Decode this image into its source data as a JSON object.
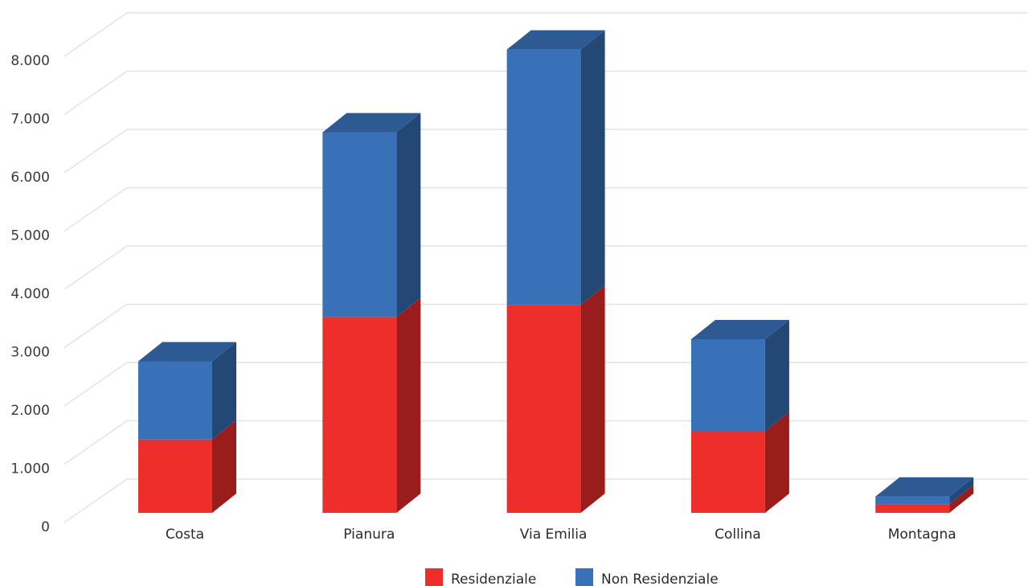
{
  "chart_data": {
    "type": "bar",
    "stacked": true,
    "three_d": true,
    "categories": [
      "Costa",
      "Pianura",
      "Via Emilia",
      "Collina",
      "Montagna"
    ],
    "series": [
      {
        "name": "Residenziale",
        "values": [
          1260,
          3360,
          3570,
          1400,
          150
        ],
        "color": "#ee2e2a"
      },
      {
        "name": "Non Residenziale",
        "values": [
          1340,
          3170,
          4380,
          1580,
          130
        ],
        "color": "#3971b8"
      }
    ],
    "ylim": [
      0,
      8000
    ],
    "y_ticks": [
      {
        "value": 0,
        "label": "0"
      },
      {
        "value": 1000,
        "label": "1.000"
      },
      {
        "value": 2000,
        "label": "2.000"
      },
      {
        "value": 3000,
        "label": "3.000"
      },
      {
        "value": 4000,
        "label": "4.000"
      },
      {
        "value": 5000,
        "label": "5.000"
      },
      {
        "value": 6000,
        "label": "6.000"
      },
      {
        "value": 7000,
        "label": "7.000"
      },
      {
        "value": 8000,
        "label": "8.000"
      }
    ],
    "grid": true,
    "legend": {
      "placement": "bottom-center"
    },
    "title": "",
    "xlabel": "",
    "ylabel": ""
  }
}
